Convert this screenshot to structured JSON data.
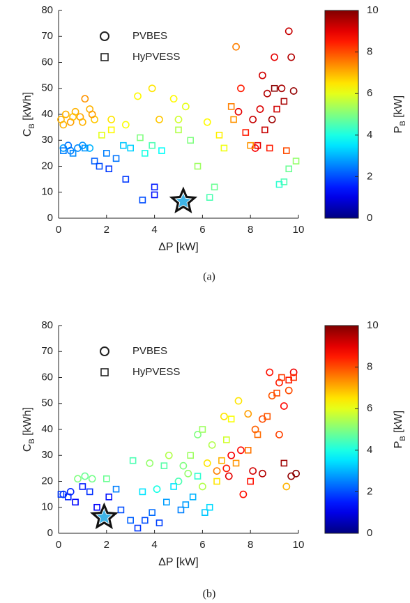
{
  "chart_data": [
    {
      "type": "scatter",
      "caption": "(a)",
      "xlabel": "ΔP [kW]",
      "ylabel": {
        "text": "C",
        "sub": "B",
        "unit": " [kWh]"
      },
      "xlim": [
        0,
        10
      ],
      "xticks": [
        0,
        2,
        4,
        6,
        8,
        10
      ],
      "ylim": [
        0,
        80
      ],
      "yticks": [
        0,
        10,
        20,
        30,
        40,
        50,
        60,
        70,
        80
      ],
      "colormap": "jet",
      "clim": [
        0,
        10
      ],
      "cticks": [
        0,
        2,
        4,
        6,
        8,
        10
      ],
      "clabel": {
        "text": "P",
        "sub": "B",
        "unit": " [kW]"
      },
      "series": [
        {
          "name": "PVBES",
          "marker": "circle",
          "x": [
            0.1,
            0.3,
            0.5,
            0.7,
            0.9,
            1.1,
            1.3,
            1.5,
            0.2,
            0.6,
            1.0,
            1.4,
            2.2,
            2.8,
            3.3,
            3.9,
            4.2,
            4.8,
            5.3,
            5.0,
            6.2,
            7.6,
            7.5,
            8.1,
            8.5,
            8.7,
            9.0,
            9.6,
            9.7,
            9.3,
            9.8,
            8.9,
            8.4,
            7.4,
            8.2,
            0.2,
            0.5,
            0.8,
            1.0,
            1.3,
            0.4
          ],
          "values": [
            38,
            40,
            37,
            41,
            39,
            46,
            42,
            38,
            36,
            39,
            37,
            40,
            38,
            36,
            47,
            50,
            38,
            46,
            43,
            38,
            37,
            50,
            41,
            38,
            55,
            48,
            62,
            72,
            62,
            50,
            49,
            38,
            42,
            66,
            27,
            27,
            26,
            27,
            28,
            27,
            28
          ],
          "colors": [
            7,
            7,
            7.2,
            7,
            7.1,
            7.3,
            7,
            6.8,
            7,
            6.9,
            7,
            7.2,
            6.5,
            6.2,
            6.3,
            6.5,
            6.8,
            6.3,
            6,
            5.8,
            6.3,
            8.5,
            9,
            9.3,
            9.2,
            9.5,
            9,
            9.3,
            9.5,
            9.6,
            9.8,
            9.7,
            9.1,
            7.5,
            8.8,
            2.8,
            2.5,
            2.6,
            2.7,
            3,
            2.4
          ]
        },
        {
          "name": "HyPVESS",
          "marker": "square",
          "x": [
            0.2,
            0.6,
            1.1,
            1.5,
            1.7,
            2.0,
            2.1,
            2.4,
            2.7,
            3.0,
            2.8,
            3.4,
            3.6,
            3.9,
            4.0,
            4.0,
            3.5,
            4.3,
            5.0,
            5.5,
            5.8,
            6.3,
            6.5,
            6.7,
            6.9,
            7.2,
            7.8,
            8.3,
            8.6,
            9.1,
            9.4,
            9.4,
            9.2,
            9.6,
            9.9,
            8.0,
            9.5,
            8.8,
            2.2,
            1.8,
            7.3,
            9.0
          ],
          "values": [
            26,
            25,
            27,
            22,
            20,
            25,
            19,
            23,
            28,
            27,
            15,
            31,
            25,
            28,
            12,
            9,
            7,
            26,
            34,
            30,
            20,
            8,
            12,
            32,
            27,
            43,
            33,
            28,
            34,
            42,
            45,
            14,
            13,
            19,
            22,
            28,
            26,
            27,
            34,
            32,
            38,
            50
          ],
          "colors": [
            2.5,
            2.6,
            2.7,
            2.2,
            2,
            2.5,
            1.8,
            2.4,
            3.2,
            3.3,
            1.8,
            5,
            4,
            4.5,
            1.5,
            1.4,
            2,
            3.8,
            5.5,
            5,
            5.3,
            4.5,
            4.8,
            6.4,
            6.1,
            7.5,
            8.5,
            9,
            9.3,
            9.2,
            9.6,
            4.5,
            4.2,
            4.8,
            5.2,
            7.3,
            8,
            8.5,
            6.3,
            6,
            7.3,
            9.9
          ]
        }
      ],
      "optimum": {
        "x": 5.2,
        "y": 6.5
      }
    },
    {
      "type": "scatter",
      "caption": "(b)",
      "xlabel": "ΔP [kW]",
      "ylabel": {
        "text": "C",
        "sub": "B",
        "unit": " [kWh]"
      },
      "xlim": [
        0,
        10
      ],
      "xticks": [
        0,
        2,
        4,
        6,
        8,
        10
      ],
      "ylim": [
        0,
        80
      ],
      "yticks": [
        0,
        10,
        20,
        30,
        40,
        50,
        60,
        70,
        80
      ],
      "colormap": "jet",
      "clim": [
        0,
        10
      ],
      "cticks": [
        0,
        2,
        4,
        6,
        8,
        10
      ],
      "clabel": {
        "text": "P",
        "sub": "B",
        "unit": " [kW]"
      },
      "series": [
        {
          "name": "PVBES",
          "marker": "circle",
          "x": [
            0.2,
            0.5,
            0.8,
            1.1,
            1.4,
            4.1,
            5.0,
            5.4,
            6.2,
            6.6,
            7.0,
            7.2,
            7.6,
            7.1,
            7.7,
            8.1,
            8.5,
            8.5,
            8.9,
            9.2,
            9.4,
            9.2,
            8.8,
            9.6,
            9.8,
            9.7,
            9.9,
            9.5,
            7.5,
            7.9,
            8.2,
            6.9,
            5.8,
            6.4,
            3.8,
            4.6,
            5.2,
            6.0
          ],
          "values": [
            15,
            16,
            21,
            22,
            21,
            17,
            20,
            23,
            27,
            24,
            25,
            30,
            32,
            22,
            15,
            24,
            23,
            44,
            53,
            38,
            49,
            58,
            62,
            55,
            62,
            22,
            23,
            18,
            51,
            46,
            40,
            45,
            38,
            34,
            27,
            30,
            26,
            18
          ],
          "colors": [
            1.8,
            1.6,
            5,
            4.8,
            4.9,
            4,
            4.5,
            5.2,
            6.5,
            7.5,
            8.5,
            8.8,
            8.7,
            9,
            8.6,
            9.2,
            9.5,
            8,
            7.9,
            8.1,
            8.7,
            8.5,
            8.6,
            8,
            8.9,
            9.8,
            9.9,
            7,
            6.5,
            7.2,
            7.8,
            6.5,
            5,
            5.5,
            5.2,
            5.5,
            5,
            5.5
          ]
        },
        {
          "name": "HyPVESS",
          "marker": "square",
          "x": [
            0.1,
            0.4,
            0.7,
            1.0,
            1.3,
            1.6,
            2.1,
            2.4,
            2.6,
            3.0,
            3.1,
            3.3,
            3.6,
            3.9,
            4.2,
            4.5,
            4.8,
            5.1,
            5.3,
            5.6,
            5.8,
            6.1,
            6.3,
            6.6,
            6.8,
            7.0,
            7.4,
            7.9,
            8.3,
            8.7,
            9.1,
            9.3,
            9.6,
            9.8,
            9.4,
            8.0,
            2.0,
            3.5,
            4.4,
            5.5,
            6.0,
            7.2
          ],
          "values": [
            15,
            14,
            12,
            18,
            16,
            10,
            14,
            17,
            9,
            5,
            28,
            2,
            5,
            8,
            4,
            12,
            18,
            9,
            11,
            14,
            22,
            8,
            10,
            20,
            28,
            36,
            27,
            32,
            38,
            45,
            54,
            60,
            59,
            60,
            27,
            20,
            21,
            16,
            26,
            30,
            40,
            44
          ],
          "colors": [
            1.8,
            1.6,
            1.3,
            1.5,
            1.7,
            1.2,
            1.4,
            2.5,
            2,
            2.2,
            4.5,
            1.8,
            2,
            2.3,
            1.9,
            2.8,
            3.5,
            2.5,
            2.8,
            3,
            4.2,
            3.2,
            3.4,
            6.5,
            7,
            5.8,
            7.3,
            7.6,
            7.7,
            7.9,
            8,
            8.2,
            8.5,
            8.3,
            9.7,
            8.6,
            4.8,
            3.5,
            4.6,
            5.3,
            5.3,
            6.2
          ]
        }
      ],
      "optimum": {
        "x": 1.9,
        "y": 6.2
      }
    }
  ]
}
